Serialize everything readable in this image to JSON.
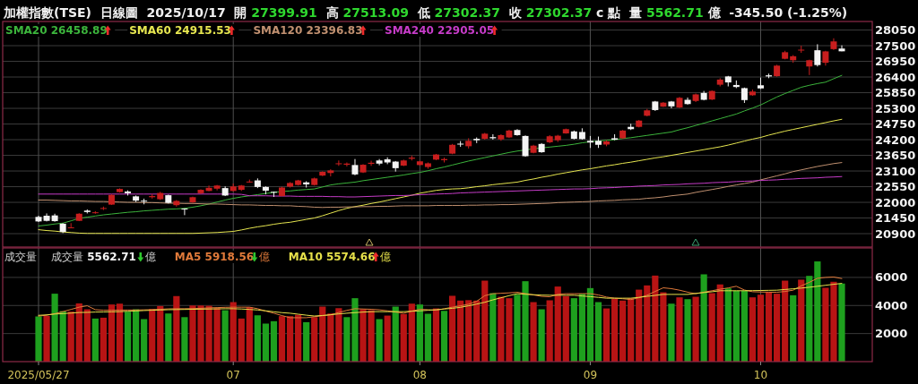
{
  "chart_data": [
    {
      "type": "candlestick",
      "title": "加權指數(TSE)  日線圖  2025/10/17  開 27399.91  高 27513.09  低 27302.37  收 27302.37 c 點  量 5562.71 億  -345.50 (-1.25%)",
      "categories": [
        "2025/05/27",
        null,
        null,
        null,
        null,
        null,
        null,
        null,
        null,
        null,
        null,
        null,
        null,
        null,
        null,
        null,
        null,
        null,
        null,
        null,
        null,
        null,
        null,
        null,
        "07",
        null,
        null,
        null,
        null,
        null,
        null,
        null,
        null,
        null,
        null,
        null,
        null,
        null,
        null,
        null,
        null,
        null,
        null,
        null,
        null,
        null,
        null,
        "08",
        null,
        null,
        null,
        null,
        null,
        null,
        null,
        null,
        null,
        null,
        null,
        null,
        null,
        null,
        null,
        null,
        null,
        null,
        null,
        null,
        "09",
        null,
        null,
        null,
        null,
        null,
        null,
        null,
        null,
        null,
        null,
        null,
        null,
        null,
        null,
        null,
        null,
        null,
        null,
        null,
        null,
        "10",
        null,
        null,
        null,
        null,
        null,
        null,
        null,
        null,
        null,
        null
      ],
      "ohlc": [
        [
          21490,
          21530,
          21310,
          21330
        ],
        [
          21530,
          21610,
          21330,
          21350
        ],
        [
          21540,
          21600,
          21320,
          21340
        ],
        [
          21250,
          21270,
          20920,
          20960
        ],
        [
          21100,
          21270,
          21090,
          21120
        ],
        [
          21350,
          21620,
          21340,
          21600
        ],
        [
          21710,
          21750,
          21610,
          21660
        ],
        [
          21620,
          21690,
          21600,
          21650
        ],
        [
          21770,
          21850,
          21730,
          21800
        ],
        [
          21920,
          22280,
          21910,
          22260
        ],
        [
          22360,
          22490,
          22340,
          22470
        ],
        [
          22380,
          22420,
          22240,
          22320
        ],
        [
          22210,
          22240,
          22010,
          22060
        ],
        [
          22060,
          22130,
          21930,
          22030
        ],
        [
          22180,
          22290,
          22130,
          22220
        ],
        [
          22110,
          22370,
          22080,
          22330
        ],
        [
          22250,
          22270,
          21960,
          21980
        ],
        [
          21900,
          22080,
          21850,
          22050
        ],
        [
          21780,
          21790,
          21550,
          21750
        ],
        [
          22000,
          22200,
          21980,
          22180
        ],
        [
          22320,
          22460,
          22290,
          22440
        ],
        [
          22400,
          22590,
          22390,
          22510
        ],
        [
          22480,
          22610,
          22420,
          22590
        ],
        [
          22500,
          22560,
          22220,
          22240
        ],
        [
          22400,
          22660,
          22380,
          22560
        ],
        [
          22440,
          22610,
          22400,
          22590
        ],
        [
          22710,
          22800,
          22690,
          22730
        ],
        [
          22770,
          22840,
          22500,
          22540
        ],
        [
          22540,
          22560,
          22280,
          22410
        ],
        [
          22370,
          22380,
          22190,
          22350
        ],
        [
          22220,
          22550,
          22210,
          22520
        ],
        [
          22550,
          22710,
          22520,
          22680
        ],
        [
          22610,
          22790,
          22590,
          22770
        ],
        [
          22700,
          22740,
          22520,
          22630
        ],
        [
          22610,
          22870,
          22590,
          22840
        ],
        [
          22940,
          23090,
          22920,
          23070
        ],
        [
          23030,
          23160,
          22910,
          23120
        ],
        [
          23340,
          23470,
          23280,
          23370
        ],
        [
          23320,
          23400,
          23260,
          23360
        ],
        [
          23310,
          23520,
          22950,
          22980
        ],
        [
          23050,
          23340,
          23030,
          23320
        ],
        [
          23350,
          23460,
          23280,
          23390
        ],
        [
          23470,
          23520,
          23300,
          23360
        ],
        [
          23510,
          23580,
          23340,
          23400
        ],
        [
          23430,
          23450,
          23080,
          23200
        ],
        [
          23290,
          23500,
          23270,
          23470
        ],
        [
          23530,
          23640,
          23470,
          23570
        ],
        [
          23310,
          23460,
          23290,
          23440
        ],
        [
          23240,
          23400,
          23180,
          23370
        ],
        [
          23500,
          23700,
          23480,
          23680
        ],
        [
          23480,
          23570,
          23400,
          23520
        ],
        [
          23710,
          24050,
          23690,
          24020
        ],
        [
          24060,
          24150,
          23950,
          24040
        ],
        [
          23970,
          24250,
          23890,
          24160
        ],
        [
          24230,
          24280,
          24080,
          24180
        ],
        [
          24230,
          24440,
          24200,
          24410
        ],
        [
          24290,
          24390,
          24200,
          24250
        ],
        [
          24210,
          24390,
          24160,
          24360
        ],
        [
          24280,
          24550,
          24260,
          24520
        ],
        [
          24540,
          24570,
          24340,
          24360
        ],
        [
          24330,
          24350,
          23600,
          23620
        ],
        [
          23740,
          24020,
          23720,
          23990
        ],
        [
          24050,
          24080,
          23740,
          23760
        ],
        [
          24110,
          24360,
          24080,
          24320
        ],
        [
          24180,
          24370,
          24120,
          24340
        ],
        [
          24420,
          24590,
          24410,
          24570
        ],
        [
          24490,
          24520,
          24210,
          24230
        ],
        [
          24470,
          24600,
          24200,
          24220
        ],
        [
          24160,
          24330,
          23910,
          24100
        ],
        [
          24160,
          24310,
          23910,
          24020
        ],
        [
          24030,
          24180,
          23970,
          24140
        ],
        [
          24250,
          24390,
          24180,
          24200
        ],
        [
          24250,
          24540,
          24230,
          24520
        ],
        [
          24650,
          24760,
          24540,
          24570
        ],
        [
          24650,
          24890,
          24630,
          24870
        ],
        [
          25040,
          25280,
          25020,
          25230
        ],
        [
          25540,
          25560,
          25210,
          25240
        ],
        [
          25360,
          25520,
          25350,
          25500
        ],
        [
          25540,
          25560,
          25300,
          25370
        ],
        [
          25330,
          25700,
          25310,
          25670
        ],
        [
          25600,
          25680,
          25430,
          25450
        ],
        [
          25560,
          25820,
          25520,
          25790
        ],
        [
          25840,
          25910,
          25580,
          25600
        ],
        [
          25610,
          25930,
          25590,
          25910
        ],
        [
          26130,
          26360,
          26070,
          26310
        ],
        [
          26420,
          26440,
          26070,
          26210
        ],
        [
          26120,
          26280,
          26010,
          26050
        ],
        [
          26010,
          26030,
          25490,
          25590
        ],
        [
          25760,
          25960,
          25740,
          25890
        ],
        [
          26110,
          26380,
          25980,
          26000
        ],
        [
          26460,
          26520,
          26360,
          26420
        ],
        [
          26430,
          26830,
          26410,
          26800
        ],
        [
          27040,
          27320,
          27020,
          27270
        ],
        [
          26990,
          27170,
          26900,
          27130
        ],
        [
          27330,
          27500,
          27250,
          27360
        ],
        [
          26770,
          27010,
          26470,
          26990
        ],
        [
          27340,
          27550,
          26770,
          26820
        ],
        [
          26900,
          27320,
          26800,
          27300
        ],
        [
          27380,
          27760,
          27350,
          27650
        ],
        [
          27399.91,
          27513.09,
          27302.37,
          27302.37
        ]
      ],
      "colors": [
        "#f4f4f4",
        "#f4f4f4",
        "#f4f4f4",
        "#f4f4f4",
        "#c81e1e",
        "#c81e1e",
        "#f4f4f4",
        "#c81e1e",
        "#c81e1e",
        "#c81e1e",
        "#c81e1e",
        "#f4f4f4",
        "#f4f4f4",
        "#f4f4f4",
        "#c81e1e",
        "#c81e1e",
        "#f4f4f4",
        "#c81e1e",
        "#f4f4f4",
        "#c81e1e",
        "#c81e1e",
        "#c81e1e",
        "#c81e1e",
        "#f4f4f4",
        "#c81e1e",
        "#c81e1e",
        "#c81e1e",
        "#f4f4f4",
        "#f4f4f4",
        "#f4f4f4",
        "#c81e1e",
        "#c81e1e",
        "#c81e1e",
        "#f4f4f4",
        "#c81e1e",
        "#c81e1e",
        "#c81e1e",
        "#c81e1e",
        "#c81e1e",
        "#f4f4f4",
        "#c81e1e",
        "#c81e1e",
        "#f4f4f4",
        "#f4f4f4",
        "#f4f4f4",
        "#c81e1e",
        "#c81e1e",
        "#c81e1e",
        "#c81e1e",
        "#c81e1e",
        "#c81e1e",
        "#c81e1e",
        "#f4f4f4",
        "#c81e1e",
        "#f4f4f4",
        "#c81e1e",
        "#f4f4f4",
        "#c81e1e",
        "#c81e1e",
        "#f4f4f4",
        "#f4f4f4",
        "#c81e1e",
        "#f4f4f4",
        "#c81e1e",
        "#c81e1e",
        "#c81e1e",
        "#f4f4f4",
        "#f4f4f4",
        "#f4f4f4",
        "#f4f4f4",
        "#c81e1e",
        "#f4f4f4",
        "#c81e1e",
        "#f4f4f4",
        "#c81e1e",
        "#c81e1e",
        "#f4f4f4",
        "#c81e1e",
        "#f4f4f4",
        "#c81e1e",
        "#f4f4f4",
        "#c81e1e",
        "#f4f4f4",
        "#c81e1e",
        "#c81e1e",
        "#f4f4f4",
        "#f4f4f4",
        "#f4f4f4",
        "#c81e1e",
        "#f4f4f4",
        "#f4f4f4",
        "#c81e1e",
        "#c81e1e",
        "#c81e1e",
        "#c81e1e",
        "#c81e1e",
        "#f4f4f4",
        "#c81e1e",
        "#c81e1e",
        "#f4f4f4"
      ],
      "series": [
        {
          "name": "SMA20 26458.89",
          "type": "line",
          "color": "#3cb43c",
          "values": [
            21170,
            21200,
            21240,
            21270,
            21350,
            21440,
            21480,
            21520,
            21560,
            21590,
            21620,
            21650,
            21670,
            21700,
            21720,
            21740,
            21760,
            21770,
            21790,
            21830,
            21880,
            21940,
            22010,
            22080,
            22140,
            22190,
            22230,
            22270,
            22310,
            22350,
            22380,
            22400,
            22430,
            22450,
            22470,
            22540,
            22610,
            22650,
            22680,
            22710,
            22760,
            22800,
            22840,
            22880,
            22920,
            22960,
            23010,
            23050,
            23110,
            23180,
            23240,
            23310,
            23380,
            23450,
            23510,
            23570,
            23630,
            23690,
            23750,
            23800,
            23840,
            23880,
            23910,
            23940,
            23970,
            24000,
            24040,
            24090,
            24130,
            24150,
            24180,
            24200,
            24240,
            24270,
            24310,
            24350,
            24390,
            24430,
            24470,
            24550,
            24620,
            24700,
            24780,
            24860,
            24940,
            25020,
            25100,
            25210,
            25310,
            25420,
            25560,
            25700,
            25820,
            25930,
            26040,
            26110,
            26170,
            26220,
            26340,
            26458.89
          ]
        },
        {
          "name": "SMA60 24915.53",
          "type": "line",
          "color": "#e6e650",
          "values": [
            21040,
            21010,
            20990,
            20960,
            20940,
            20920,
            20910,
            20910,
            20910,
            20910,
            20910,
            20910,
            20910,
            20910,
            20910,
            20910,
            20910,
            20910,
            20910,
            20910,
            20920,
            20930,
            20940,
            20960,
            20980,
            21030,
            21090,
            21140,
            21180,
            21230,
            21270,
            21300,
            21350,
            21400,
            21450,
            21530,
            21620,
            21710,
            21790,
            21850,
            21900,
            21960,
            22010,
            22070,
            22130,
            22190,
            22250,
            22320,
            22370,
            22420,
            22450,
            22470,
            22480,
            22510,
            22550,
            22580,
            22620,
            22650,
            22680,
            22710,
            22770,
            22820,
            22880,
            22930,
            22990,
            23040,
            23090,
            23140,
            23180,
            23230,
            23280,
            23320,
            23370,
            23410,
            23460,
            23510,
            23560,
            23600,
            23650,
            23700,
            23750,
            23800,
            23850,
            23900,
            23950,
            24010,
            24080,
            24150,
            24220,
            24280,
            24360,
            24430,
            24500,
            24560,
            24620,
            24680,
            24740,
            24800,
            24860,
            24915.53
          ]
        },
        {
          "name": "SMA120 23396.83",
          "type": "line",
          "color": "#c09070",
          "values": [
            22080,
            22080,
            22070,
            22060,
            22050,
            22050,
            22040,
            22030,
            22030,
            22020,
            22010,
            22000,
            22000,
            21990,
            21990,
            21980,
            21970,
            21970,
            21960,
            21960,
            21950,
            21940,
            21940,
            21930,
            21920,
            21910,
            21910,
            21900,
            21890,
            21890,
            21880,
            21880,
            21860,
            21850,
            21830,
            21820,
            21830,
            21830,
            21840,
            21840,
            21850,
            21850,
            21860,
            21860,
            21870,
            21880,
            21880,
            21880,
            21880,
            21890,
            21890,
            21890,
            21890,
            21900,
            21900,
            21910,
            21910,
            21920,
            21920,
            21930,
            21940,
            21950,
            21960,
            21970,
            21990,
            22000,
            22010,
            22020,
            22030,
            22050,
            22060,
            22070,
            22090,
            22100,
            22110,
            22140,
            22160,
            22190,
            22230,
            22260,
            22290,
            22350,
            22400,
            22450,
            22500,
            22560,
            22610,
            22660,
            22710,
            22790,
            22860,
            22930,
            23000,
            23080,
            23140,
            23200,
            23260,
            23310,
            23360,
            23396.83
          ]
        },
        {
          "name": "SMA240 22905.05",
          "type": "line",
          "color": "#c63cc8",
          "values": [
            22290,
            22290,
            22290,
            22290,
            22290,
            22290,
            22290,
            22290,
            22290,
            22290,
            22290,
            22290,
            22290,
            22290,
            22290,
            22290,
            22290,
            22290,
            22290,
            22290,
            22290,
            22290,
            22290,
            22290,
            22290,
            22280,
            22230,
            22230,
            22230,
            22220,
            22220,
            22220,
            22210,
            22210,
            22210,
            22210,
            22200,
            22200,
            22190,
            22190,
            22200,
            22210,
            22220,
            22230,
            22240,
            22240,
            22250,
            22270,
            22280,
            22290,
            22300,
            22310,
            22330,
            22340,
            22350,
            22360,
            22370,
            22380,
            22390,
            22400,
            22410,
            22420,
            22430,
            22440,
            22450,
            22460,
            22470,
            22470,
            22480,
            22500,
            22510,
            22520,
            22540,
            22550,
            22570,
            22580,
            22590,
            22610,
            22620,
            22630,
            22650,
            22660,
            22670,
            22690,
            22700,
            22710,
            22730,
            22740,
            22750,
            22770,
            22780,
            22790,
            22810,
            22820,
            22840,
            22850,
            22860,
            22880,
            22890,
            22905.05
          ]
        }
      ],
      "ylim": [
        20430,
        28350
      ],
      "yticks": [
        20900,
        21450,
        22000,
        22550,
        23100,
        23650,
        24200,
        24750,
        25300,
        25850,
        26400,
        26950,
        27500,
        28050
      ],
      "grid": true,
      "tick_labels": "y"
    },
    {
      "type": "bar",
      "title": "成交量",
      "ylabel": "億",
      "annotations": [
        "成交量 5562.71"
      ],
      "categories": [
        "2025/05/27",
        null,
        null,
        null,
        null,
        null,
        null,
        null,
        null,
        null,
        null,
        null,
        null,
        null,
        null,
        null,
        null,
        null,
        null,
        null,
        null,
        null,
        null,
        null,
        "07",
        null,
        null,
        null,
        null,
        null,
        null,
        null,
        null,
        null,
        null,
        null,
        null,
        null,
        null,
        null,
        null,
        null,
        null,
        null,
        null,
        null,
        null,
        "08",
        null,
        null,
        null,
        null,
        null,
        null,
        null,
        null,
        null,
        null,
        null,
        null,
        null,
        null,
        null,
        null,
        null,
        null,
        null,
        null,
        "09",
        null,
        null,
        null,
        null,
        null,
        null,
        null,
        null,
        null,
        null,
        null,
        null,
        null,
        null,
        null,
        null,
        null,
        null,
        null,
        null,
        "10",
        null,
        null,
        null,
        null,
        null,
        null,
        null,
        null,
        null,
        null
      ],
      "series": [
        {
          "values": [
            3220,
            3260,
            4840,
            3600,
            3560,
            4150,
            3730,
            3070,
            3130,
            4070,
            4130,
            3560,
            3730,
            3030,
            3750,
            3960,
            3430,
            4670,
            3170,
            4000,
            4000,
            3980,
            3810,
            3660,
            4240,
            3070,
            3880,
            3300,
            2710,
            2880,
            3240,
            3240,
            3340,
            2810,
            3170,
            3920,
            3430,
            3810,
            3170,
            4520,
            3730,
            3660,
            3030,
            3280,
            3920,
            3390,
            4130,
            4070,
            3410,
            3790,
            3620,
            4690,
            4350,
            4380,
            4350,
            5770,
            4880,
            4620,
            4520,
            4770,
            5730,
            4240,
            3730,
            4370,
            5350,
            4670,
            4520,
            4840,
            5240,
            4240,
            3790,
            4470,
            4350,
            4520,
            5130,
            5430,
            6130,
            4940,
            4130,
            4580,
            4450,
            4620,
            6220,
            4880,
            5500,
            5220,
            5050,
            5050,
            4580,
            4770,
            4940,
            4840,
            5770,
            4730,
            5840,
            6110,
            7140,
            5260,
            5690,
            5562.71
          ],
          "colors": [
            "#1ea01e",
            "#b81414",
            "#1ea01e",
            "#1ea01e",
            "#b81414",
            "#b81414",
            "#b81414",
            "#1ea01e",
            "#b81414",
            "#b81414",
            "#b81414",
            "#1ea01e",
            "#1ea01e",
            "#1ea01e",
            "#b81414",
            "#b81414",
            "#1ea01e",
            "#b81414",
            "#1ea01e",
            "#b81414",
            "#b81414",
            "#b81414",
            "#b81414",
            "#1ea01e",
            "#b81414",
            "#b81414",
            "#b81414",
            "#1ea01e",
            "#1ea01e",
            "#1ea01e",
            "#b81414",
            "#b81414",
            "#b81414",
            "#1ea01e",
            "#b81414",
            "#b81414",
            "#b81414",
            "#b81414",
            "#1ea01e",
            "#1ea01e",
            "#b81414",
            "#b81414",
            "#1ea01e",
            "#b81414",
            "#1ea01e",
            "#b81414",
            "#b81414",
            "#1ea01e",
            "#1ea01e",
            "#b81414",
            "#1ea01e",
            "#b81414",
            "#b81414",
            "#b81414",
            "#b81414",
            "#b81414",
            "#1ea01e",
            "#b81414",
            "#b81414",
            "#1ea01e",
            "#1ea01e",
            "#b81414",
            "#1ea01e",
            "#b81414",
            "#b81414",
            "#b81414",
            "#1ea01e",
            "#1ea01e",
            "#1ea01e",
            "#1ea01e",
            "#b81414",
            "#b81414",
            "#b81414",
            "#b81414",
            "#b81414",
            "#b81414",
            "#b81414",
            "#b81414",
            "#1ea01e",
            "#b81414",
            "#1ea01e",
            "#b81414",
            "#1ea01e",
            "#b81414",
            "#b81414",
            "#1ea01e",
            "#1ea01e",
            "#1ea01e",
            "#b81414",
            "#b81414",
            "#b81414",
            "#b81414",
            "#b81414",
            "#1ea01e",
            "#b81414",
            "#1ea01e",
            "#1ea01e",
            "#b81414",
            "#b81414",
            "#1ea01e"
          ]
        },
        {
          "name": "MA5 5918.56",
          "type": "line",
          "color": "#e07a3a",
          "values": [
            3240,
            3310,
            3420,
            3560,
            3720,
            3880,
            3980,
            3700,
            3660,
            3660,
            3670,
            3680,
            3680,
            3690,
            3700,
            3730,
            3760,
            3770,
            3770,
            3780,
            3800,
            3830,
            3850,
            3870,
            3880,
            3880,
            3880,
            3770,
            3600,
            3450,
            3280,
            3130,
            3130,
            3130,
            3200,
            3270,
            3340,
            3500,
            3650,
            3770,
            3750,
            3730,
            3690,
            3620,
            3530,
            3450,
            3600,
            3730,
            3700,
            3660,
            3770,
            3880,
            3980,
            4090,
            4300,
            4700,
            4840,
            4870,
            4900,
            4940,
            4850,
            4750,
            4650,
            4620,
            4800,
            4840,
            4840,
            4840,
            4840,
            4750,
            4600,
            4520,
            4480,
            4420,
            4550,
            4730,
            5000,
            5260,
            5200,
            5090,
            4950,
            4840,
            4950,
            5050,
            5160,
            5250,
            5370,
            5100,
            4980,
            4960,
            4950,
            4940,
            5000,
            5090,
            5400,
            5650,
            5940,
            6000,
            6030,
            5918.56
          ]
        },
        {
          "name": "MA10 5574.66",
          "type": "line",
          "color": "#e6e04a",
          "values": [
            3300,
            3330,
            3390,
            3420,
            3460,
            3500,
            3510,
            3530,
            3540,
            3550,
            3560,
            3590,
            3610,
            3640,
            3660,
            3680,
            3700,
            3710,
            3720,
            3730,
            3740,
            3750,
            3760,
            3770,
            3770,
            3750,
            3720,
            3680,
            3620,
            3550,
            3490,
            3450,
            3380,
            3310,
            3250,
            3290,
            3340,
            3400,
            3450,
            3490,
            3530,
            3560,
            3560,
            3560,
            3560,
            3560,
            3590,
            3620,
            3660,
            3700,
            3750,
            3800,
            3870,
            3980,
            4100,
            4230,
            4400,
            4550,
            4700,
            4840,
            4800,
            4770,
            4740,
            4730,
            4730,
            4730,
            4730,
            4680,
            4630,
            4580,
            4520,
            4520,
            4520,
            4520,
            4580,
            4650,
            4720,
            4790,
            4790,
            4790,
            4790,
            4860,
            4920,
            4980,
            5050,
            5050,
            5050,
            5050,
            5060,
            5070,
            5080,
            5090,
            5140,
            5190,
            5240,
            5300,
            5370,
            5440,
            5510,
            5574.66
          ]
        }
      ],
      "ylim": [
        0,
        8100
      ],
      "yticks": [
        2000,
        4000,
        6000
      ],
      "grid": true
    }
  ]
}
